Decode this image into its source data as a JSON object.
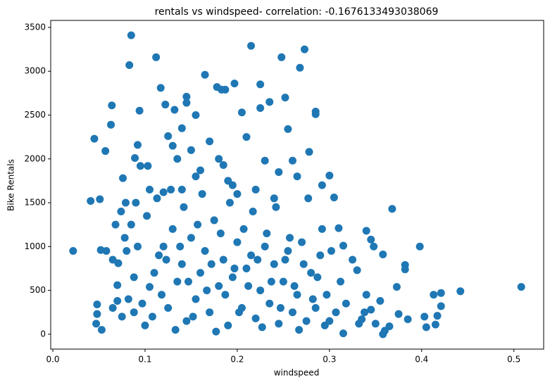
{
  "chart_data": {
    "type": "scatter",
    "title": "rentals vs windspeed- correlation: -0.1676133493038069",
    "x_label": "windspeed",
    "y_label": "Bike Rentals",
    "color": "#1f77b4",
    "xlim": [
      -0.0023,
      0.5323
    ],
    "ylim": [
      -170,
      3580
    ],
    "xticks": [
      {
        "value": 0,
        "label": "0.0"
      },
      0.1,
      0.2,
      0.3,
      0.4,
      0.5
    ],
    "yticks": [
      0,
      500,
      1000,
      1500,
      2000,
      2500,
      3000,
      3500
    ],
    "x": [
      0.022,
      0.041,
      0.045,
      0.047,
      0.048,
      0.048,
      0.051,
      0.052,
      0.053,
      0.057,
      0.058,
      0.063,
      0.064,
      0.065,
      0.068,
      0.07,
      0.071,
      0.074,
      0.076,
      0.078,
      0.079,
      0.083,
      0.085,
      0.089,
      0.092,
      0.094,
      0.095,
      0.103,
      0.112,
      0.117,
      0.122,
      0.132,
      0.135,
      0.145,
      0.145,
      0.155,
      0.165,
      0.178,
      0.183,
      0.187,
      0.197,
      0.205,
      0.215,
      0.225,
      0.225,
      0.235,
      0.248,
      0.252,
      0.255,
      0.268,
      0.273,
      0.278,
      0.285,
      0.285,
      0.292,
      0.3,
      0.305,
      0.31,
      0.315,
      0.33,
      0.34,
      0.345,
      0.348,
      0.355,
      0.358,
      0.368,
      0.373,
      0.382,
      0.382,
      0.398,
      0.403,
      0.413,
      0.417,
      0.421,
      0.421,
      0.442,
      0.508,
      0.405,
      0.415,
      0.385,
      0.375,
      0.365,
      0.358,
      0.36,
      0.315,
      0.345,
      0.335,
      0.34,
      0.1,
      0.105,
      0.11,
      0.115,
      0.12,
      0.125,
      0.13,
      0.135,
      0.14,
      0.145,
      0.15,
      0.155,
      0.16,
      0.165,
      0.17,
      0.175,
      0.18,
      0.185,
      0.19,
      0.195,
      0.2,
      0.205,
      0.21,
      0.215,
      0.22,
      0.225,
      0.23,
      0.235,
      0.24,
      0.245,
      0.25,
      0.255,
      0.26,
      0.265,
      0.27,
      0.275,
      0.28,
      0.285,
      0.29,
      0.295,
      0.088,
      0.092,
      0.097,
      0.102,
      0.108,
      0.113,
      0.118,
      0.123,
      0.128,
      0.133,
      0.138,
      0.142,
      0.147,
      0.152,
      0.157,
      0.162,
      0.167,
      0.172,
      0.177,
      0.182,
      0.187,
      0.192,
      0.197,
      0.202,
      0.207,
      0.212,
      0.217,
      0.222,
      0.227,
      0.232,
      0.237,
      0.242,
      0.247,
      0.252,
      0.257,
      0.262,
      0.267,
      0.272,
      0.277,
      0.282,
      0.287,
      0.292,
      0.297,
      0.302,
      0.307,
      0.312,
      0.318,
      0.325,
      0.332,
      0.338,
      0.35,
      0.3,
      0.245,
      0.23,
      0.21,
      0.185,
      0.17,
      0.16,
      0.14,
      0.125,
      0.12,
      0.14,
      0.155,
      0.195,
      0.22,
      0.26,
      0.065,
      0.075,
      0.082,
      0.088,
      0.07,
      0.08,
      0.085,
      0.09,
      0.105,
      0.18,
      0.19,
      0.2,
      0.15,
      0.13,
      0.265,
      0.24
    ],
    "values": [
      950,
      1520,
      2230,
      120,
      340,
      230,
      1540,
      960,
      50,
      2090,
      950,
      2390,
      2610,
      850,
      1250,
      380,
      810,
      1400,
      1780,
      1100,
      1500,
      3070,
      3410,
      2010,
      2160,
      2550,
      1920,
      1920,
      3160,
      2810,
      2620,
      2560,
      2000,
      2710,
      2640,
      2500,
      2960,
      2820,
      2790,
      2790,
      2860,
      2530,
      3290,
      2580,
      2850,
      2650,
      3160,
      2700,
      2340,
      3040,
      3250,
      2080,
      2540,
      2510,
      1700,
      1810,
      1560,
      1210,
      1010,
      730,
      1180,
      1080,
      1000,
      380,
      910,
      1430,
      540,
      790,
      740,
      1000,
      200,
      450,
      210,
      320,
      470,
      490,
      540,
      80,
      110,
      170,
      230,
      90,
      0,
      40,
      10,
      280,
      170,
      450,
      100,
      540,
      700,
      900,
      1000,
      300,
      1200,
      600,
      800,
      150,
      1100,
      400,
      700,
      950,
      250,
      1300,
      550,
      850,
      100,
      650,
      1050,
      300,
      750,
      900,
      180,
      500,
      1000,
      350,
      800,
      120,
      600,
      950,
      250,
      450,
      1050,
      150,
      700,
      300,
      900,
      100,
      650,
      1000,
      350,
      1350,
      200,
      1550,
      450,
      850,
      1650,
      50,
      1000,
      1450,
      600,
      200,
      1250,
      1600,
      500,
      800,
      30,
      1150,
      450,
      1500,
      750,
      250,
      1200,
      550,
      1400,
      850,
      80,
      1150,
      600,
      1450,
      300,
      850,
      1100,
      550,
      50,
      800,
      1550,
      400,
      650,
      1200,
      450,
      950,
      250,
      600,
      350,
      850,
      120,
      250,
      120,
      150,
      1850,
      1980,
      2250,
      1930,
      2200,
      1870,
      2350,
      2260,
      1620,
      1650,
      1800,
      1700,
      1650,
      1980,
      300,
      200,
      400,
      250,
      560,
      950,
      1250,
      1500,
      1650,
      2000,
      1750,
      1600,
      2100,
      2150,
      1800,
      1550
    ]
  }
}
